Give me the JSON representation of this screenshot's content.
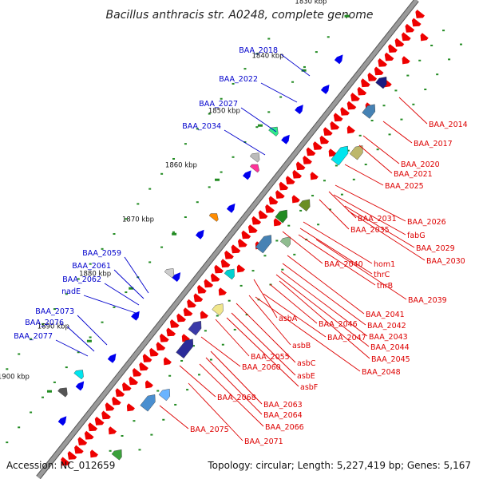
{
  "title": "Bacillus anthracis str. A0248, complete genome",
  "footer": {
    "accession": "Accession: NC_012659",
    "topology": "Topology: circular; Length: 5,227,419 bp; Genes: 5,167"
  },
  "ticks": [
    "1830 kbp",
    "1840 kbp",
    "1850 kbp",
    "1860 kbp",
    "1870 kbp",
    "1880 kbp",
    "1890 kbp",
    "1900 kbp"
  ],
  "genes_left": [
    "BAA_2018",
    "BAA_2022",
    "BAA_2027",
    "BAA_2034",
    "BAA_2059",
    "BAA_2061",
    "BAA_2062",
    "nadE",
    "BAA_2073",
    "BAA_2076",
    "BAA_2077"
  ],
  "genes_right": [
    "BAA_2014",
    "BAA_2017",
    "BAA_2020",
    "BAA_2021",
    "BAA_2025",
    "BAA_2026",
    "BAA_2031",
    "fabG",
    "BAA_2035",
    "BAA_2029",
    "BAA_2030",
    "BAA_2040",
    "hom1",
    "thrC",
    "thrB",
    "BAA_2039",
    "BAA_2041",
    "asbA",
    "BAA_2046",
    "BAA_2042",
    "BAA_2047",
    "BAA_2043",
    "BAA_2044",
    "asbB",
    "BAA_2045",
    "BAA_2055",
    "asbC",
    "BAA_2060",
    "BAA_2048",
    "asbE",
    "asbF",
    "BAA_2068",
    "BAA_2063",
    "BAA_2064",
    "BAA_2066",
    "BAA_2075",
    "BAA_2071"
  ],
  "colors": {
    "backbone": "#9a9a9a",
    "backbone_edge": "#555555",
    "forward_gene": "#0000ee",
    "reverse_gene": "#ee0000",
    "label_left": "#0000cc",
    "label_right": "#dd0000",
    "tick": "#228b22"
  }
}
